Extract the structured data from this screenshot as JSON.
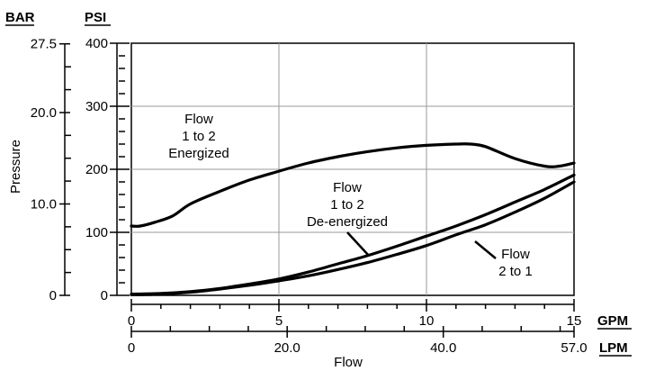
{
  "chart_data": {
    "type": "line",
    "ylabel": "Pressure",
    "xlabel": "Flow",
    "unit_left": "BAR",
    "unit_psi": "PSI",
    "unit_gpm": "GPM",
    "unit_lpm": "LPM",
    "xlim": [
      0,
      15
    ],
    "ylim": [
      0,
      400
    ],
    "grid": true,
    "psi_ticks": [
      "0",
      "100",
      "200",
      "300",
      "400"
    ],
    "bar_ticks": [
      {
        "label": "0",
        "psi": 0
      },
      {
        "label": "10.0",
        "psi": 145
      },
      {
        "label": "20.0",
        "psi": 290
      },
      {
        "label": "27.5",
        "psi": 399
      }
    ],
    "gpm_ticks": [
      "0",
      "5",
      "10",
      "15"
    ],
    "lpm_ticks": [
      {
        "label": "0",
        "gpm": 0
      },
      {
        "label": "20.0",
        "gpm": 5.28
      },
      {
        "label": "40.0",
        "gpm": 10.57
      },
      {
        "label": "57.0",
        "gpm": 15
      }
    ],
    "series": [
      {
        "x": [
          0,
          0.3,
          0.8,
          1.4,
          2,
          3,
          4,
          5,
          6,
          7,
          8,
          9,
          10,
          11,
          11.5,
          12,
          13,
          14,
          14.5,
          15
        ],
        "values": [
          110,
          110,
          116,
          126,
          145,
          165,
          183,
          197,
          210,
          220,
          228,
          234,
          238,
          240,
          240,
          236,
          217,
          205,
          205,
          210
        ]
      },
      {
        "x": [
          0,
          1,
          2,
          3,
          4,
          5,
          6,
          7,
          8,
          9,
          10,
          11,
          12,
          13,
          14,
          15
        ],
        "values": [
          2,
          3,
          6,
          11,
          18,
          26,
          37,
          50,
          63,
          78,
          94,
          110,
          128,
          148,
          168,
          191
        ]
      },
      {
        "x": [
          0,
          1,
          2,
          3,
          4,
          5,
          6,
          7,
          8,
          9,
          10,
          11,
          12,
          13,
          14,
          15
        ],
        "values": [
          1,
          2,
          5,
          10,
          16,
          23,
          31,
          41,
          52,
          65,
          79,
          96,
          112,
          132,
          154,
          180
        ]
      }
    ],
    "annotations": {
      "energized": [
        "Flow",
        "1 to 2",
        "Energized"
      ],
      "de_energized": [
        "Flow",
        "1 to 2",
        "De-energized"
      ],
      "flow_2_to_1": [
        "Flow",
        "2 to 1"
      ]
    }
  }
}
